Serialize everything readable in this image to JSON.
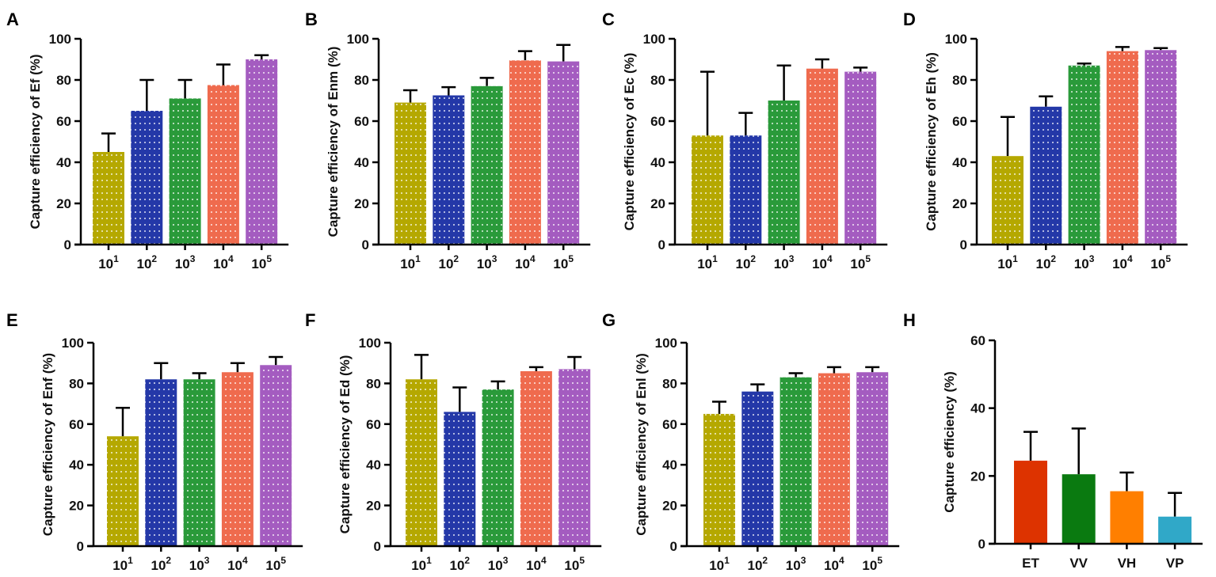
{
  "chart_data": [
    {
      "panel": "A",
      "type": "bar",
      "ylabel": "Capture efficiency of Ef (%)",
      "ylim": [
        0,
        100
      ],
      "yticks": [
        0,
        20,
        40,
        60,
        80,
        100
      ],
      "categories": [
        "10^1",
        "10^2",
        "10^3",
        "10^4",
        "10^5"
      ],
      "values": [
        45,
        65,
        71,
        77.5,
        90
      ],
      "errors": [
        9,
        15,
        9,
        10,
        2
      ],
      "colors": [
        "#b5a800",
        "#2438a8",
        "#2a9a3a",
        "#ef6b4e",
        "#a45cc0"
      ],
      "pattern": "dotted"
    },
    {
      "panel": "B",
      "type": "bar",
      "ylabel": "Capture efficiency of Enm (%)",
      "ylim": [
        0,
        100
      ],
      "yticks": [
        0,
        20,
        40,
        60,
        80,
        100
      ],
      "categories": [
        "10^1",
        "10^2",
        "10^3",
        "10^4",
        "10^5"
      ],
      "values": [
        69,
        72.5,
        77,
        89.5,
        89
      ],
      "errors": [
        6,
        4,
        4,
        4.5,
        8
      ],
      "colors": [
        "#b5a800",
        "#2438a8",
        "#2a9a3a",
        "#ef6b4e",
        "#a45cc0"
      ],
      "pattern": "dotted"
    },
    {
      "panel": "C",
      "type": "bar",
      "ylabel": "Capture efficiency of Ec (%)",
      "ylim": [
        0,
        100
      ],
      "yticks": [
        0,
        20,
        40,
        60,
        80,
        100
      ],
      "categories": [
        "10^1",
        "10^2",
        "10^3",
        "10^4",
        "10^5"
      ],
      "values": [
        53,
        53,
        70,
        85.5,
        84
      ],
      "errors": [
        31,
        11,
        17,
        4.5,
        2
      ],
      "colors": [
        "#b5a800",
        "#2438a8",
        "#2a9a3a",
        "#ef6b4e",
        "#a45cc0"
      ],
      "pattern": "dotted"
    },
    {
      "panel": "D",
      "type": "bar",
      "ylabel": "Capture efficiency of Eh (%)",
      "ylim": [
        0,
        100
      ],
      "yticks": [
        0,
        20,
        40,
        60,
        80,
        100
      ],
      "categories": [
        "10^1",
        "10^2",
        "10^3",
        "10^4",
        "10^5"
      ],
      "values": [
        43,
        67,
        87,
        94,
        94.5
      ],
      "errors": [
        19,
        5,
        1,
        2,
        1
      ],
      "colors": [
        "#b5a800",
        "#2438a8",
        "#2a9a3a",
        "#ef6b4e",
        "#a45cc0"
      ],
      "pattern": "dotted"
    },
    {
      "panel": "E",
      "type": "bar",
      "ylabel": "Capture efficiency of Enf (%)",
      "ylim": [
        0,
        100
      ],
      "yticks": [
        0,
        20,
        40,
        60,
        80,
        100
      ],
      "categories": [
        "10^1",
        "10^2",
        "10^3",
        "10^4",
        "10^5"
      ],
      "values": [
        54,
        82,
        82,
        85.5,
        89
      ],
      "errors": [
        14,
        8,
        3,
        4.5,
        4
      ],
      "colors": [
        "#b5a800",
        "#2438a8",
        "#2a9a3a",
        "#ef6b4e",
        "#a45cc0"
      ],
      "pattern": "dotted"
    },
    {
      "panel": "F",
      "type": "bar",
      "ylabel": "Capture efficiency of Ed (%)",
      "ylim": [
        0,
        100
      ],
      "yticks": [
        0,
        20,
        40,
        60,
        80,
        100
      ],
      "categories": [
        "10^1",
        "10^2",
        "10^3",
        "10^4",
        "10^5"
      ],
      "values": [
        82,
        66,
        77,
        86,
        87
      ],
      "errors": [
        12,
        12,
        4,
        2,
        6
      ],
      "colors": [
        "#b5a800",
        "#2438a8",
        "#2a9a3a",
        "#ef6b4e",
        "#a45cc0"
      ],
      "pattern": "dotted"
    },
    {
      "panel": "G",
      "type": "bar",
      "ylabel": "Capture efficiency of Enl (%)",
      "ylim": [
        0,
        100
      ],
      "yticks": [
        0,
        20,
        40,
        60,
        80,
        100
      ],
      "categories": [
        "10^1",
        "10^2",
        "10^3",
        "10^4",
        "10^5"
      ],
      "values": [
        65,
        76,
        83,
        85,
        85.5
      ],
      "errors": [
        6,
        3.5,
        2,
        3,
        2.5
      ],
      "colors": [
        "#b5a800",
        "#2438a8",
        "#2a9a3a",
        "#ef6b4e",
        "#a45cc0"
      ],
      "pattern": "dotted"
    },
    {
      "panel": "H",
      "type": "bar",
      "ylabel": "Capture efficiency (%)",
      "ylim": [
        0,
        60
      ],
      "yticks": [
        0,
        20,
        40,
        60
      ],
      "categories": [
        "ET",
        "VV",
        "VH",
        "VP"
      ],
      "values": [
        24.5,
        20.5,
        15.5,
        8
      ],
      "errors": [
        8.5,
        13.5,
        5.5,
        7
      ],
      "colors": [
        "#dd3300",
        "#0a7a10",
        "#ff7f00",
        "#30a8c8"
      ],
      "pattern": "solid"
    }
  ]
}
